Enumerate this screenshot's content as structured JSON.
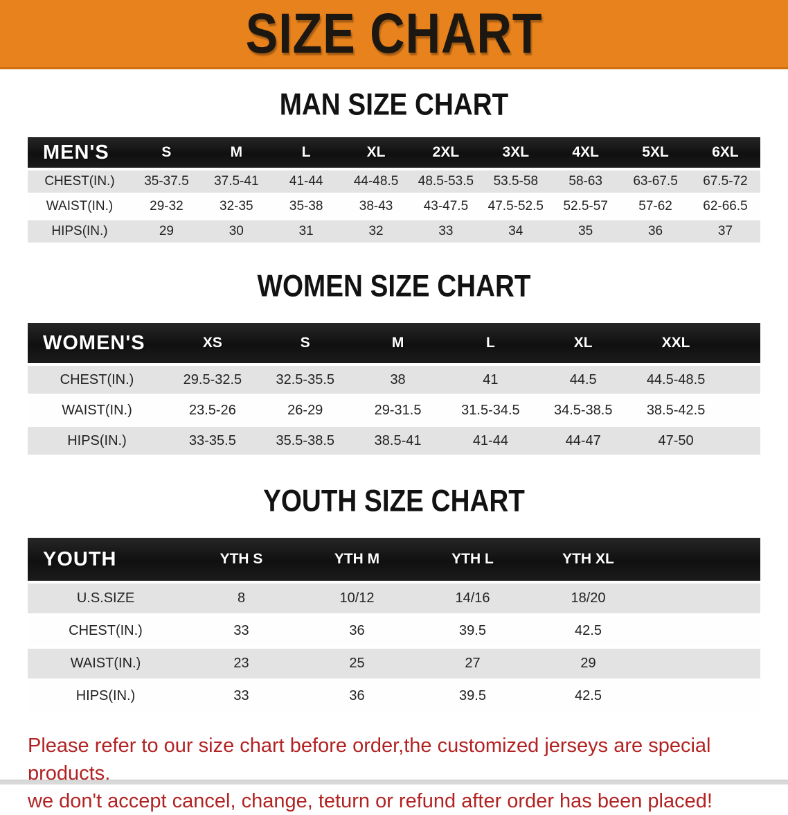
{
  "banner": {
    "title": "SIZE CHART"
  },
  "colors": {
    "banner_bg": "#E8821C",
    "table_header_bg": "#161616",
    "row_shaded": "#E3E3E3",
    "note_red": "#B22222"
  },
  "tables": {
    "men": {
      "heading": "MAN SIZE CHART",
      "label": "MEN'S",
      "sizes": [
        "S",
        "M",
        "L",
        "XL",
        "2XL",
        "3XL",
        "4XL",
        "5XL",
        "6XL"
      ],
      "rows": [
        {
          "label": "CHEST(IN.)",
          "values": [
            "35-37.5",
            "37.5-41",
            "41-44",
            "44-48.5",
            "48.5-53.5",
            "53.5-58",
            "58-63",
            "63-67.5",
            "67.5-72"
          ]
        },
        {
          "label": "WAIST(IN.)",
          "values": [
            "29-32",
            "32-35",
            "35-38",
            "38-43",
            "43-47.5",
            "47.5-52.5",
            "52.5-57",
            "57-62",
            "62-66.5"
          ]
        },
        {
          "label": "HIPS(IN.)",
          "values": [
            "29",
            "30",
            "31",
            "32",
            "33",
            "34",
            "35",
            "36",
            "37"
          ]
        }
      ]
    },
    "women": {
      "heading": "WOMEN SIZE CHART",
      "label": "WOMEN'S",
      "sizes": [
        "XS",
        "S",
        "M",
        "L",
        "XL",
        "XXL"
      ],
      "rows": [
        {
          "label": "CHEST(IN.)",
          "values": [
            "29.5-32.5",
            "32.5-35.5",
            "38",
            "41",
            "44.5",
            "44.5-48.5"
          ]
        },
        {
          "label": "WAIST(IN.)",
          "values": [
            "23.5-26",
            "26-29",
            "29-31.5",
            "31.5-34.5",
            "34.5-38.5",
            "38.5-42.5"
          ]
        },
        {
          "label": "HIPS(IN.)",
          "values": [
            "33-35.5",
            "35.5-38.5",
            "38.5-41",
            "41-44",
            "44-47",
            "47-50"
          ]
        }
      ]
    },
    "youth": {
      "heading": "YOUTH SIZE CHART",
      "label": "YOUTH",
      "sizes": [
        "YTH S",
        "YTH M",
        "YTH L",
        "YTH XL"
      ],
      "rows": [
        {
          "label": "U.S.SIZE",
          "values": [
            "8",
            "10/12",
            "14/16",
            "18/20"
          ]
        },
        {
          "label": "CHEST(IN.)",
          "values": [
            "33",
            "36",
            "39.5",
            "42.5"
          ]
        },
        {
          "label": "WAIST(IN.)",
          "values": [
            "23",
            "25",
            "27",
            "29"
          ]
        },
        {
          "label": "HIPS(IN.)",
          "values": [
            "33",
            "36",
            "39.5",
            "42.5"
          ]
        }
      ]
    }
  },
  "note": {
    "line1": "Please refer to our size chart before order,the customized jerseys are special products,",
    "line2": "we don't accept cancel, change, teturn or refund after order has been placed!"
  }
}
